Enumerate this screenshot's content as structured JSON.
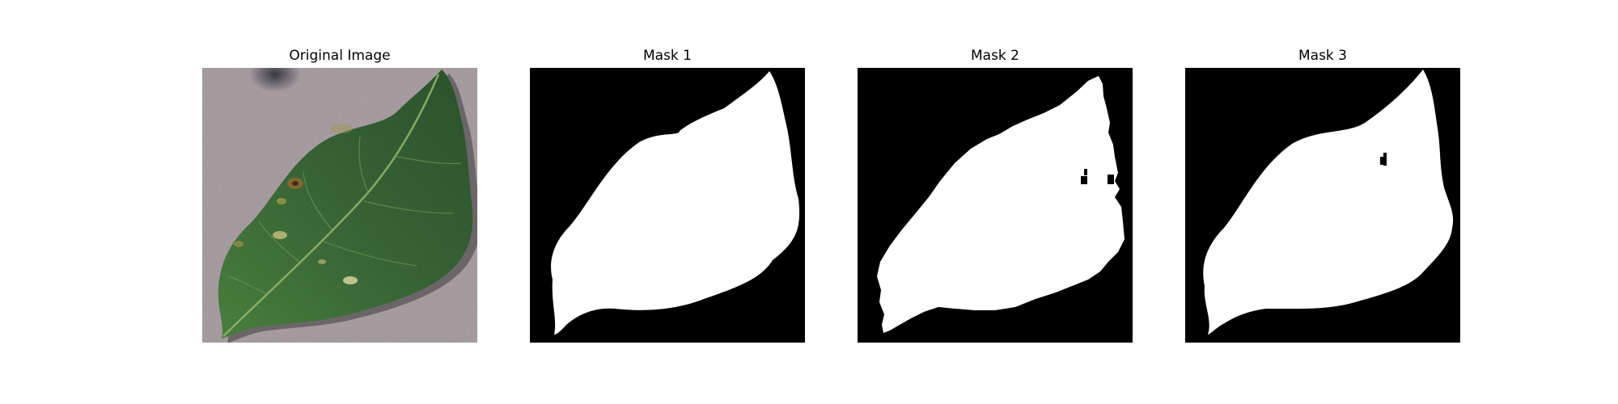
{
  "figure": {
    "panels": [
      {
        "title": "Original Image"
      },
      {
        "title": "Mask 1"
      },
      {
        "title": "Mask 2"
      },
      {
        "title": "Mask 3"
      }
    ]
  },
  "colors": {
    "background": "#ffffff",
    "mask_background": "#000000",
    "mask_foreground": "#ffffff",
    "leaf": "#3f6e3c",
    "surface": "#b3a7ab"
  }
}
